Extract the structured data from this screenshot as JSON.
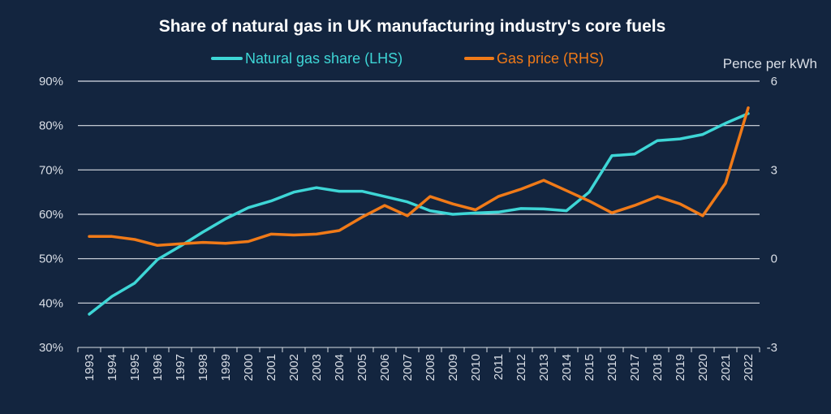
{
  "chart_data": {
    "type": "line",
    "title": "Share of natural gas in UK manufacturing industry's core fuels",
    "x": [
      1993,
      1994,
      1995,
      1996,
      1997,
      1998,
      1999,
      2000,
      2001,
      2002,
      2003,
      2004,
      2005,
      2006,
      2007,
      2008,
      2009,
      2010,
      2011,
      2012,
      2013,
      2014,
      2015,
      2016,
      2017,
      2018,
      2019,
      2020,
      2021,
      2022
    ],
    "series": [
      {
        "name": "Natural gas share (LHS)",
        "axis": "left",
        "color": "#3ed6d6",
        "values": [
          37.5,
          41.5,
          44.5,
          49.8,
          52.8,
          56.0,
          59.0,
          61.5,
          63.0,
          65.0,
          66.0,
          65.2,
          65.2,
          64.0,
          62.8,
          60.8,
          60.0,
          60.3,
          60.5,
          61.3,
          61.2,
          60.8,
          65.0,
          73.2,
          73.6,
          76.6,
          77.0,
          78.0,
          80.5,
          82.7
        ]
      },
      {
        "name": "Gas price (RHS)",
        "axis": "right",
        "color": "#f07a18",
        "values": [
          0.75,
          0.75,
          0.65,
          0.45,
          0.5,
          0.55,
          0.52,
          0.58,
          0.83,
          0.8,
          0.83,
          0.95,
          1.4,
          1.8,
          1.45,
          2.1,
          1.85,
          1.65,
          2.1,
          2.35,
          2.65,
          2.3,
          1.95,
          1.55,
          1.8,
          2.1,
          1.85,
          1.45,
          2.55,
          5.1
        ]
      }
    ],
    "y_left": {
      "ticks": [
        "90%",
        "80%",
        "70%",
        "60%",
        "50%",
        "40%",
        "30%"
      ],
      "ylim": [
        30,
        90
      ]
    },
    "y_right": {
      "label": "Pence per kWh",
      "ticks": [
        "6",
        "3",
        "0",
        "-3"
      ],
      "ylim": [
        -3,
        6
      ]
    },
    "grid": true,
    "legend": "top"
  }
}
